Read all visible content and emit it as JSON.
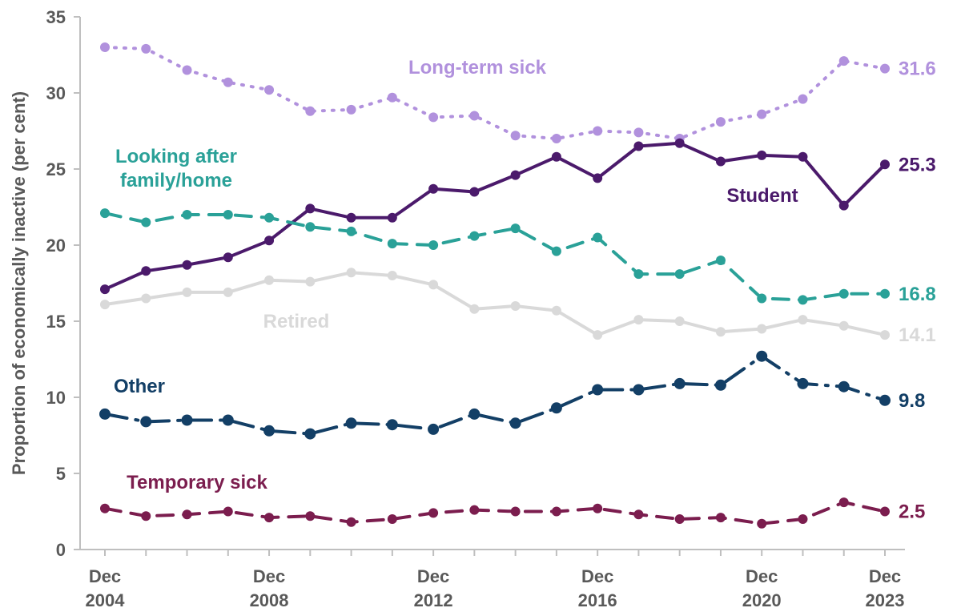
{
  "chart_data": {
    "type": "line",
    "ylabel": "Proportion of economically inactive (per cent)",
    "xlabel": "",
    "ylim": [
      0,
      35
    ],
    "yticks": [
      0,
      5,
      10,
      15,
      20,
      25,
      30,
      35
    ],
    "x": [
      2004,
      2005,
      2006,
      2007,
      2008,
      2009,
      2010,
      2011,
      2012,
      2013,
      2014,
      2015,
      2016,
      2017,
      2018,
      2019,
      2020,
      2021,
      2022,
      2023
    ],
    "xticks": [
      {
        "year": 2004,
        "line1": "Dec",
        "line2": "2004"
      },
      {
        "year": 2008,
        "line1": "Dec",
        "line2": "2008"
      },
      {
        "year": 2012,
        "line1": "Dec",
        "line2": "2012"
      },
      {
        "year": 2016,
        "line1": "Dec",
        "line2": "2016"
      },
      {
        "year": 2020,
        "line1": "Dec",
        "line2": "2020"
      },
      {
        "year": 2023,
        "line1": "Dec",
        "line2": "2023"
      }
    ],
    "grid": false,
    "series": [
      {
        "key": "long_term_sick",
        "name": "Long-term sick",
        "label_lines": [
          "Long-term sick"
        ],
        "color": "#b191dd",
        "style": "dotted",
        "end_label": "31.6",
        "values": [
          33.0,
          32.9,
          31.5,
          30.7,
          30.2,
          28.8,
          28.9,
          29.7,
          28.4,
          28.5,
          27.2,
          27.0,
          27.5,
          27.4,
          27.0,
          28.1,
          28.6,
          29.6,
          32.1,
          31.6
        ]
      },
      {
        "key": "student",
        "name": "Student",
        "label_lines": [
          "Student"
        ],
        "color": "#4b1a6b",
        "style": "solid",
        "end_label": "25.3",
        "values": [
          17.1,
          18.3,
          18.7,
          19.2,
          20.3,
          22.4,
          21.8,
          21.8,
          23.7,
          23.5,
          24.6,
          25.8,
          24.4,
          26.5,
          26.7,
          25.5,
          25.9,
          25.8,
          22.6,
          25.3
        ]
      },
      {
        "key": "looking_after_family",
        "name": "Looking after family/home",
        "label_lines": [
          "Looking after",
          "family/home"
        ],
        "color": "#2aa198",
        "style": "dashed",
        "end_label": "16.8",
        "values": [
          22.1,
          21.5,
          22.0,
          22.0,
          21.8,
          21.2,
          20.9,
          20.1,
          20.0,
          20.6,
          21.1,
          19.6,
          20.5,
          18.1,
          18.1,
          19.0,
          16.5,
          16.4,
          16.8,
          16.8
        ]
      },
      {
        "key": "retired",
        "name": "Retired",
        "label_lines": [
          "Retired"
        ],
        "color": "#d9d9d9",
        "style": "solid",
        "end_label": "14.1",
        "values": [
          16.1,
          16.5,
          16.9,
          16.9,
          17.7,
          17.6,
          18.2,
          18.0,
          17.4,
          15.8,
          16.0,
          15.7,
          14.1,
          15.1,
          15.0,
          14.3,
          14.5,
          15.1,
          14.7,
          14.1
        ]
      },
      {
        "key": "other",
        "name": "Other",
        "label_lines": [
          "Other"
        ],
        "color": "#133f66",
        "style": "dashdot",
        "end_label": "9.8",
        "values": [
          8.9,
          8.4,
          8.5,
          8.5,
          7.8,
          7.6,
          8.3,
          8.2,
          7.9,
          8.9,
          8.3,
          9.3,
          10.5,
          10.5,
          10.9,
          10.8,
          12.7,
          10.9,
          10.7,
          9.8
        ]
      },
      {
        "key": "temporary_sick",
        "name": "Temporary sick",
        "label_lines": [
          "Temporary sick"
        ],
        "color": "#7b1d4e",
        "style": "dashed",
        "end_label": "2.5",
        "values": [
          2.7,
          2.2,
          2.3,
          2.5,
          2.1,
          2.2,
          1.8,
          2.0,
          2.4,
          2.6,
          2.5,
          2.5,
          2.7,
          2.3,
          2.0,
          2.1,
          1.7,
          2.0,
          3.1,
          2.5
        ]
      }
    ]
  }
}
